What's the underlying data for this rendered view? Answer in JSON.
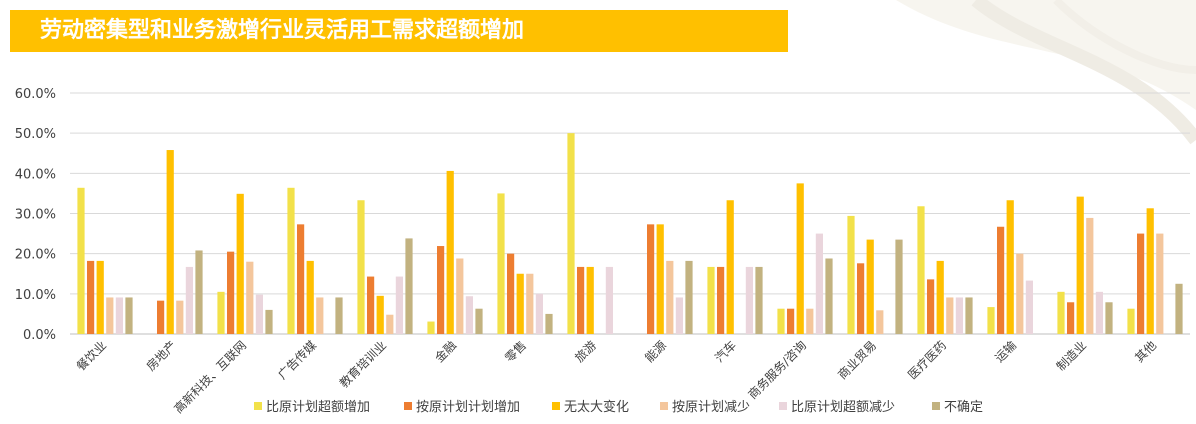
{
  "title": "劳动密集型和业务激增行业灵活用工需求超额增加",
  "chart_data": {
    "type": "bar",
    "title": "劳动密集型和业务激增行业灵活用工需求超额增加",
    "ylim": [
      0,
      60
    ],
    "yticks": [
      "0.0%",
      "10.0%",
      "20.0%",
      "30.0%",
      "40.0%",
      "50.0%",
      "60.0%"
    ],
    "grid": true,
    "legend_position": "bottom",
    "categories": [
      "餐饮业",
      "房地产",
      "高新科技、互联网",
      "广告传媒",
      "教育培训业",
      "金融",
      "零售",
      "旅游",
      "能源",
      "汽车",
      "商务服务/咨询",
      "商业贸易",
      "医疗医药",
      "运输",
      "制造业",
      "其他"
    ],
    "series": [
      {
        "name": "比原计划超额增加",
        "color": "#f2e14a",
        "values": [
          36.4,
          0,
          10.5,
          36.4,
          33.3,
          3.1,
          35.0,
          50.0,
          0,
          16.7,
          6.3,
          29.4,
          31.8,
          6.7,
          10.5,
          6.3
        ]
      },
      {
        "name": "按原计划计划增加",
        "color": "#ed7d31",
        "values": [
          18.2,
          8.3,
          20.5,
          27.3,
          14.3,
          21.9,
          20.0,
          16.7,
          27.3,
          16.7,
          6.3,
          17.6,
          13.6,
          26.7,
          7.9,
          25.0
        ]
      },
      {
        "name": "无太大变化",
        "color": "#ffc000",
        "values": [
          18.2,
          45.8,
          34.9,
          18.2,
          9.5,
          40.6,
          15.0,
          16.7,
          27.3,
          33.3,
          37.5,
          23.5,
          18.2,
          33.3,
          34.2,
          31.3
        ]
      },
      {
        "name": "按原计划减少",
        "color": "#f4c69c",
        "values": [
          9.1,
          8.3,
          18.0,
          9.1,
          4.8,
          18.8,
          15.0,
          0,
          18.2,
          0,
          6.3,
          5.9,
          9.1,
          20.0,
          28.9,
          25.0
        ]
      },
      {
        "name": "比原计划超额减少",
        "color": "#ead5dc",
        "values": [
          9.1,
          16.7,
          9.8,
          0,
          14.3,
          9.4,
          10.0,
          16.7,
          9.1,
          16.7,
          25.0,
          0,
          9.1,
          13.3,
          10.5,
          0
        ]
      },
      {
        "name": "不确定",
        "color": "#c2b280",
        "values": [
          9.1,
          20.8,
          6.0,
          9.1,
          23.8,
          6.3,
          5.0,
          0,
          18.2,
          16.7,
          18.8,
          23.5,
          9.1,
          0,
          7.9,
          12.5
        ]
      }
    ]
  }
}
